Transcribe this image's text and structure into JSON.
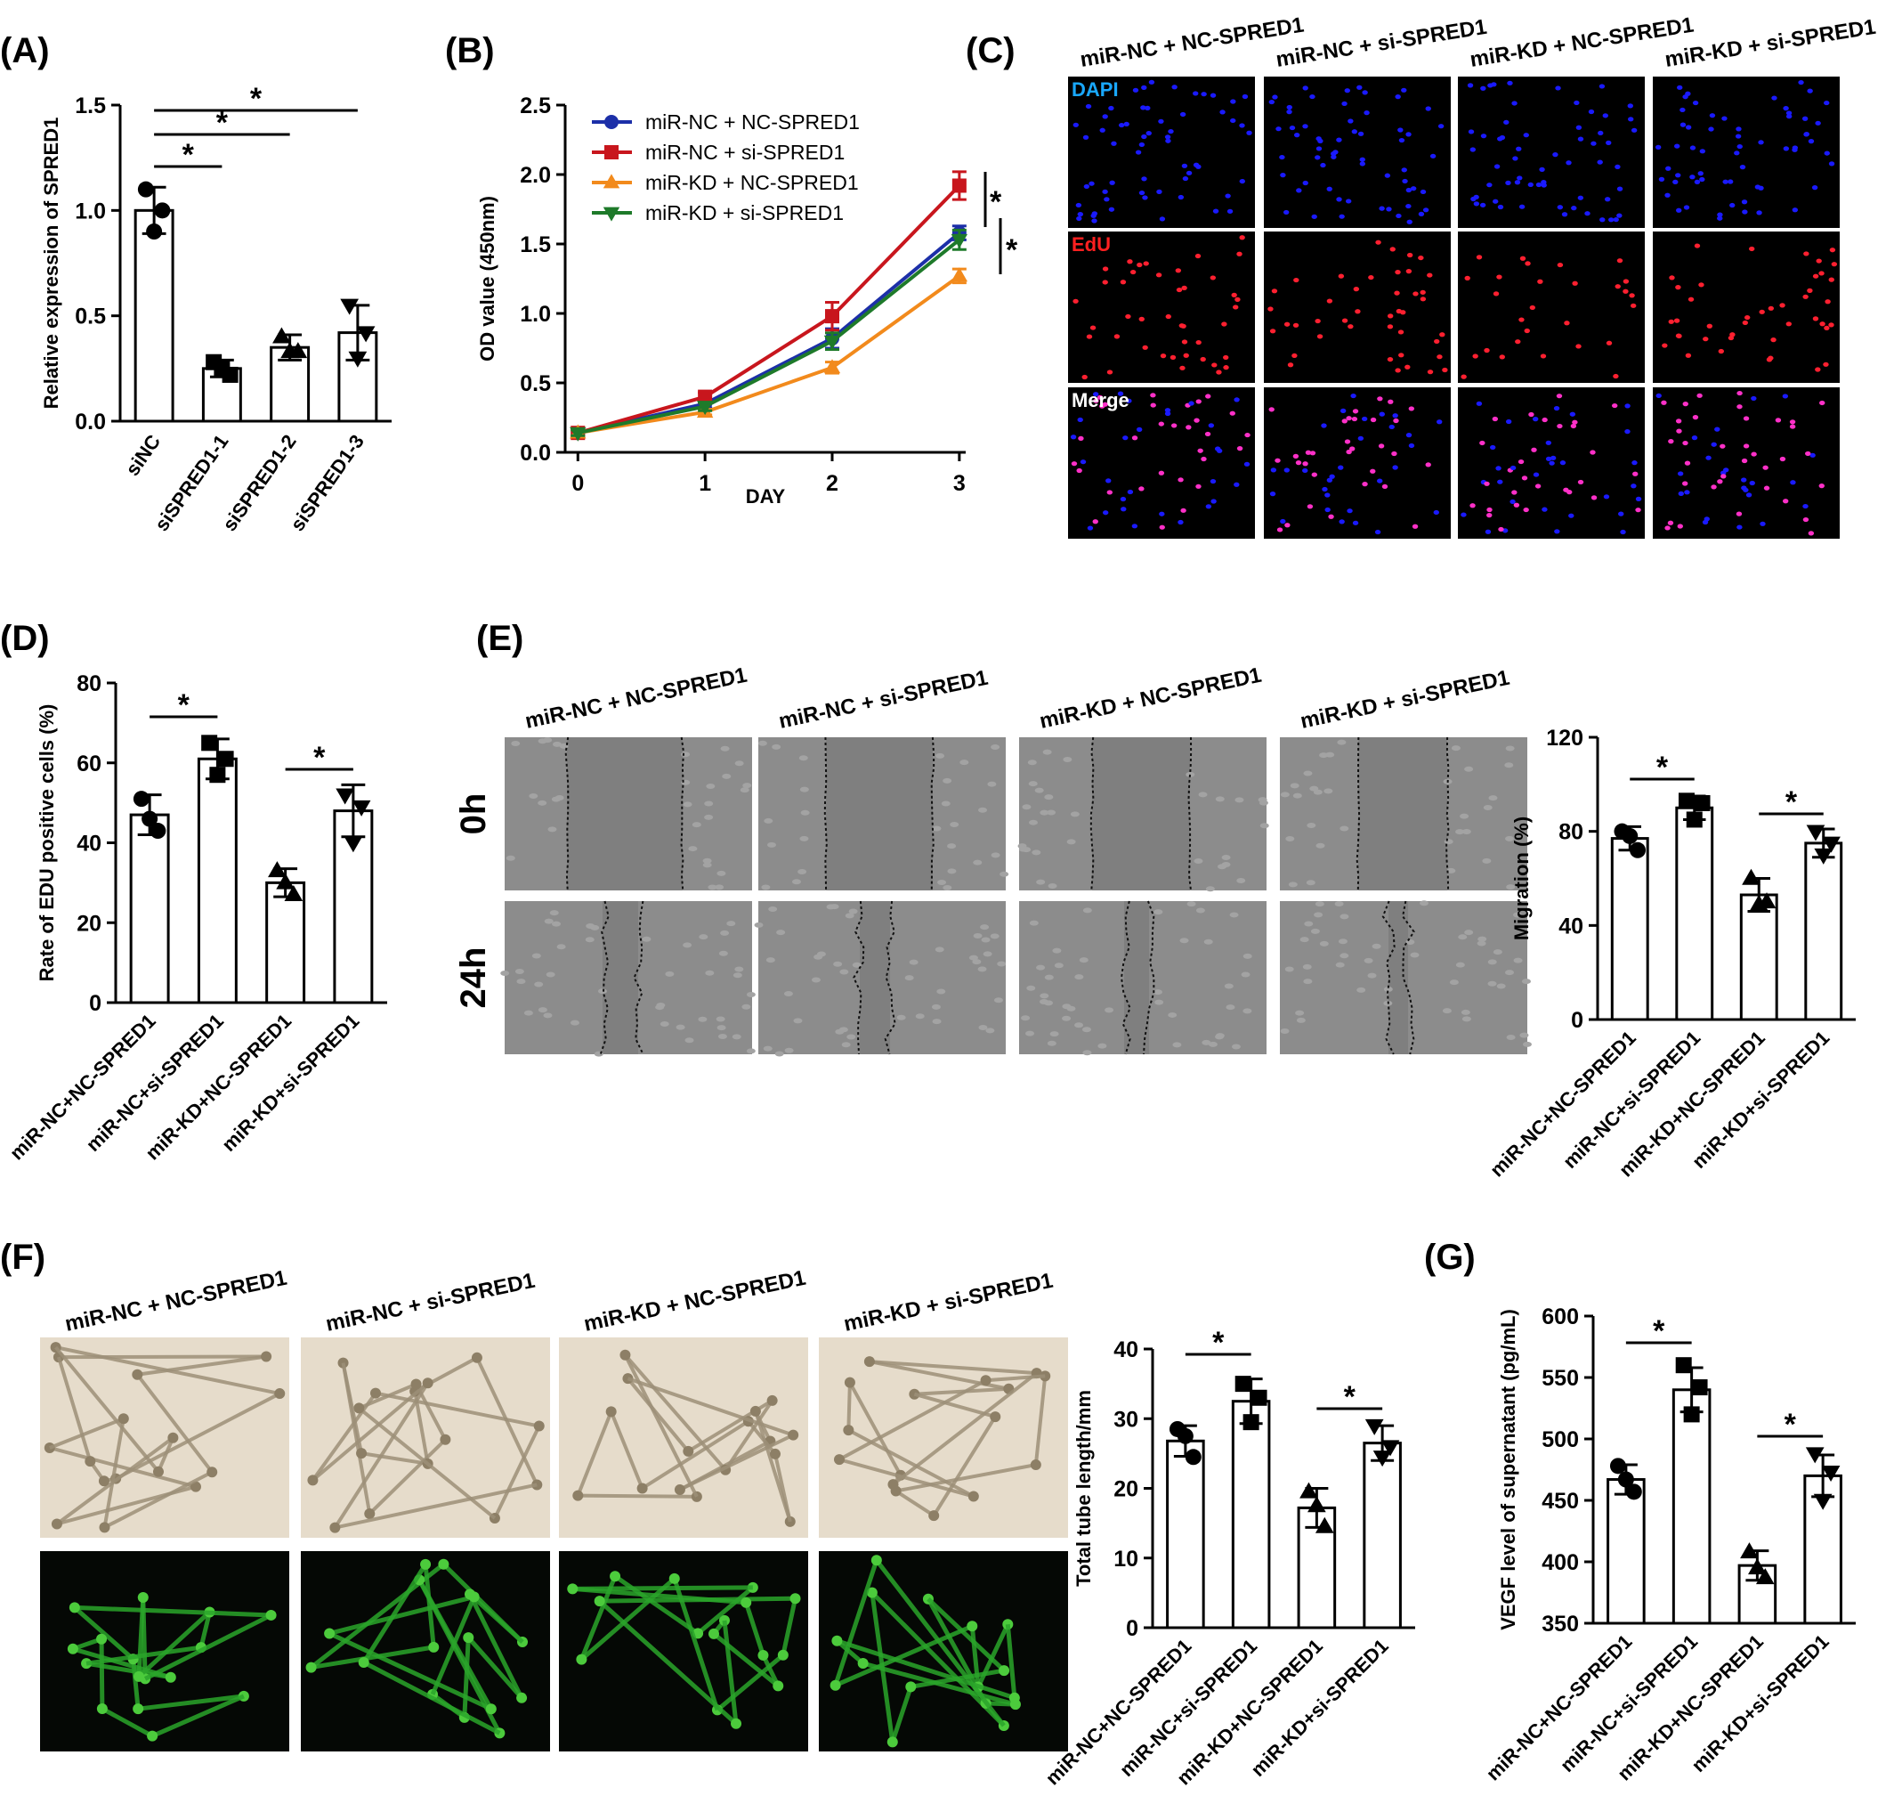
{
  "panels": {
    "A": "(A)",
    "B": "(B)",
    "C": "(C)",
    "D": "(D)",
    "E": "(E)",
    "F": "(F)",
    "G": "(G)"
  },
  "groups": [
    "miR-NC + NC-SPRED1",
    "miR-NC + si-SPRED1",
    "miR-KD + NC-SPRED1",
    "miR-KD + si-SPRED1"
  ],
  "group_labels_short": [
    "miR-NC+NC-SPRED1",
    "miR-NC+si-SPRED1",
    "miR-KD+NC-SPRED1",
    "miR-KD+si-SPRED1"
  ],
  "panelC": {
    "channels": [
      "DAPI",
      "EdU",
      "Merge"
    ],
    "channel_colors": [
      "#19a8ff",
      "#ff2020",
      "#ffffff"
    ],
    "nucleus_colors": [
      "#1a1aff",
      "#ff2030",
      "#ff30c8"
    ]
  },
  "panelE": {
    "rows": [
      "0h",
      "24h"
    ]
  },
  "colors": {
    "blue": "#1c2fa8",
    "red": "#c8161d",
    "orange": "#f28a1c",
    "green": "#1e7a2a",
    "tube_green": "#2aa52a",
    "scratch_gray": "#8f8f8f",
    "bright_field": "#e6dccb"
  },
  "chart_data": [
    {
      "id": "A",
      "type": "bar",
      "categories": [
        "siNC",
        "siSPRED1-1",
        "siSPRED1-2",
        "siSPRED1-3"
      ],
      "values": [
        1.0,
        0.25,
        0.35,
        0.42
      ],
      "errors": [
        0.11,
        0.04,
        0.06,
        0.13
      ],
      "points": [
        [
          1.1,
          1.0,
          0.9
        ],
        [
          0.28,
          0.22,
          0.25
        ],
        [
          0.4,
          0.33,
          0.33
        ],
        [
          0.55,
          0.42,
          0.3
        ]
      ],
      "markers": [
        "circle",
        "square",
        "triangle",
        "inverted-triangle"
      ],
      "ylabel": "Relative expression of SPRED1",
      "ylim": [
        0,
        1.5
      ],
      "yticks": [
        "0.0",
        "0.5",
        "1.0",
        "1.5"
      ],
      "significance": [
        {
          "from": 0,
          "to": 1,
          "label": "*"
        },
        {
          "from": 0,
          "to": 2,
          "label": "*"
        },
        {
          "from": 0,
          "to": 3,
          "label": "*"
        }
      ]
    },
    {
      "id": "B",
      "type": "line",
      "x": [
        0,
        1,
        2,
        3
      ],
      "xticks": [
        "0",
        "1",
        "2",
        "3"
      ],
      "yticks": [
        "0.0",
        "0.5",
        "1.0",
        "1.5",
        "2.0",
        "2.5"
      ],
      "xlabel": "DAY",
      "ylabel": "OD value (450nm)",
      "ylim": [
        0,
        2.5
      ],
      "series": [
        {
          "name": "miR-NC + NC-SPRED1",
          "values": [
            0.14,
            0.35,
            0.82,
            1.58
          ],
          "errors": [
            0.02,
            0.03,
            0.07,
            0.05
          ],
          "color": "#1c2fa8",
          "marker": "circle"
        },
        {
          "name": "miR-NC + si-SPRED1",
          "values": [
            0.14,
            0.4,
            0.98,
            1.92
          ],
          "errors": [
            0.02,
            0.03,
            0.1,
            0.1
          ],
          "color": "#c8161d",
          "marker": "square"
        },
        {
          "name": "miR-KD + NC-SPRED1",
          "values": [
            0.14,
            0.29,
            0.61,
            1.27
          ],
          "errors": [
            0.02,
            0.02,
            0.04,
            0.05
          ],
          "color": "#f28a1c",
          "marker": "triangle"
        },
        {
          "name": "miR-KD + si-SPRED1",
          "values": [
            0.14,
            0.33,
            0.8,
            1.53
          ],
          "errors": [
            0.02,
            0.03,
            0.06,
            0.07
          ],
          "color": "#1e7a2a",
          "marker": "inverted-triangle"
        }
      ],
      "significance": [
        "*",
        "*"
      ],
      "legend": "top-left"
    },
    {
      "id": "D",
      "type": "bar",
      "ylabel": "Rate of EDU positive cells (%)",
      "ylim": [
        0,
        80
      ],
      "yticks": [
        "0",
        "20",
        "40",
        "60",
        "80"
      ],
      "values": [
        47,
        61,
        30,
        48
      ],
      "errors": [
        5,
        5,
        3.5,
        6.5
      ],
      "points": [
        [
          51,
          43,
          46
        ],
        [
          65,
          61,
          57
        ],
        [
          33,
          27,
          30
        ],
        [
          52,
          49,
          40
        ]
      ],
      "significance": [
        {
          "from": 0,
          "to": 1,
          "label": "*"
        },
        {
          "from": 2,
          "to": 3,
          "label": "*"
        }
      ]
    },
    {
      "id": "E",
      "type": "bar",
      "ylabel": "Migration (%)",
      "ylim": [
        0,
        120
      ],
      "yticks": [
        "0",
        "40",
        "80",
        "120"
      ],
      "values": [
        77,
        90,
        53,
        75
      ],
      "errors": [
        5,
        5,
        7,
        6
      ],
      "points": [
        [
          80,
          72,
          78
        ],
        [
          93,
          92,
          85
        ],
        [
          60,
          50,
          49
        ],
        [
          80,
          75,
          70
        ]
      ],
      "significance": [
        {
          "from": 0,
          "to": 1,
          "label": "*"
        },
        {
          "from": 2,
          "to": 3,
          "label": "*"
        }
      ]
    },
    {
      "id": "F",
      "type": "bar",
      "ylabel": "Total tube length/mm",
      "ylim": [
        0,
        40
      ],
      "yticks": [
        "0",
        "10",
        "20",
        "30",
        "40"
      ],
      "values": [
        26.8,
        32.5,
        17.2,
        26.5
      ],
      "errors": [
        2.2,
        3.2,
        2.8,
        2.5
      ],
      "points": [
        [
          28.5,
          24.5,
          27.5
        ],
        [
          35,
          33,
          29.5
        ],
        [
          19.5,
          14.5,
          17.5
        ],
        [
          29,
          26,
          24.5
        ]
      ],
      "significance": [
        {
          "from": 0,
          "to": 1,
          "label": "*"
        },
        {
          "from": 2,
          "to": 3,
          "label": "*"
        }
      ]
    },
    {
      "id": "G",
      "type": "bar",
      "ylabel": "VEGF level of supernatant (pg/mL)",
      "ylim": [
        350,
        600
      ],
      "yticks": [
        "350",
        "400",
        "450",
        "500",
        "550",
        "600"
      ],
      "values": [
        467,
        540,
        397,
        470
      ],
      "errors": [
        12,
        18,
        12,
        17
      ],
      "points": [
        [
          478,
          457,
          467
        ],
        [
          560,
          542,
          520
        ],
        [
          408,
          387,
          395
        ],
        [
          488,
          473,
          450
        ]
      ],
      "significance": [
        {
          "from": 0,
          "to": 1,
          "label": "*"
        },
        {
          "from": 2,
          "to": 3,
          "label": "*"
        }
      ]
    }
  ]
}
